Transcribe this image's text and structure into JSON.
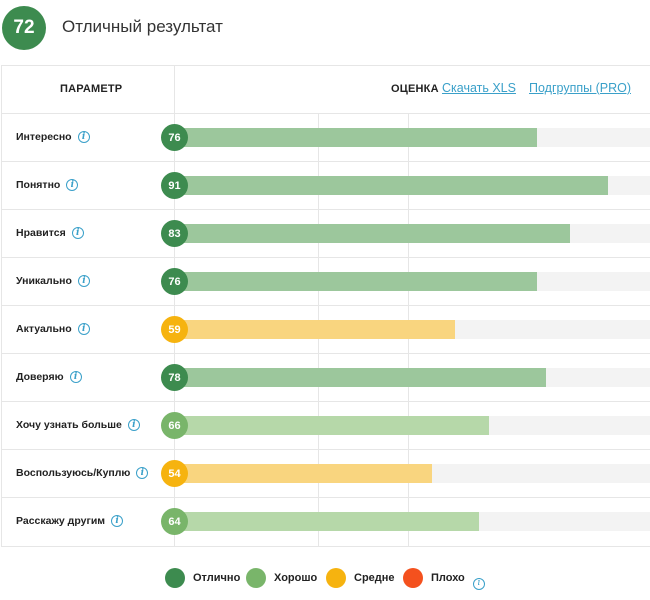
{
  "summary": {
    "score": "72",
    "title": "Отличный результат"
  },
  "header": {
    "param_label": "ПАРАМЕТР",
    "score_label": "ОЦЕНКА",
    "download_link": "Скачать XLS",
    "subgroups_link": "Подгруппы (PRO)"
  },
  "colors": {
    "excellent": "#3d8b4f",
    "good": "#79b56a",
    "average": "#f6b30f",
    "bad": "#f4511e",
    "excellent_bar": "#9cc79c",
    "good_bar": "#b6d8a9",
    "average_bar": "#f9d57f",
    "info": "#3aa0c9"
  },
  "rows": [
    {
      "label": "Интересно",
      "value": 76,
      "value_text": "76",
      "level": "excellent"
    },
    {
      "label": "Понятно",
      "value": 91,
      "value_text": "91",
      "level": "excellent"
    },
    {
      "label": "Нравится",
      "value": 83,
      "value_text": "83",
      "level": "excellent"
    },
    {
      "label": "Уникально",
      "value": 76,
      "value_text": "76",
      "level": "excellent"
    },
    {
      "label": "Актуально",
      "value": 59,
      "value_text": "59",
      "level": "average"
    },
    {
      "label": "Доверяю",
      "value": 78,
      "value_text": "78",
      "level": "excellent"
    },
    {
      "label": "Хочу узнать больше",
      "value": 66,
      "value_text": "66",
      "level": "good"
    },
    {
      "label": "Воспользуюсь/Куплю",
      "value": 54,
      "value_text": "54",
      "level": "average"
    },
    {
      "label": "Расскажу другим",
      "value": 64,
      "value_text": "64",
      "level": "good"
    }
  ],
  "legend": {
    "excellent": "Отлично",
    "good": "Хорошо",
    "average": "Средне",
    "bad": "Плохо"
  }
}
